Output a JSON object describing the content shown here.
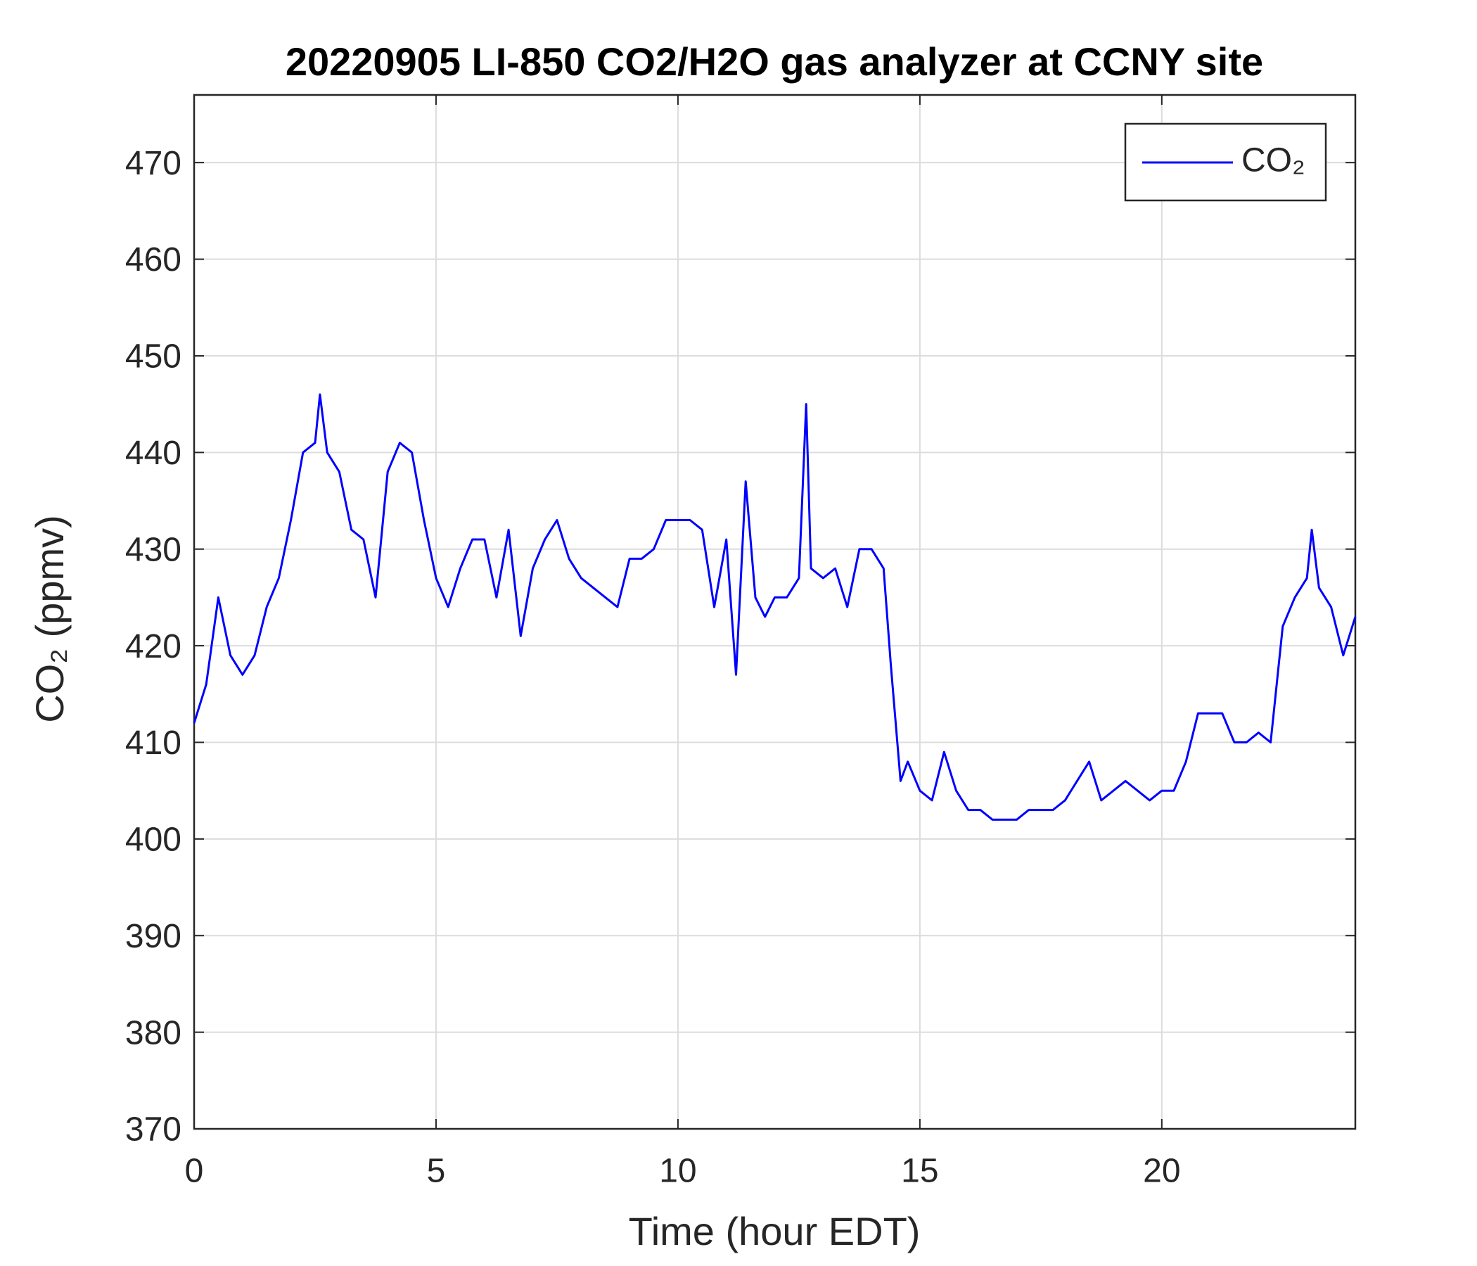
{
  "chart_data": {
    "type": "line",
    "title": "20220905 LI-850 CO2/H2O gas analyzer at CCNY site",
    "xlabel": "Time (hour EDT)",
    "ylabel": "CO₂ (ppmv)",
    "x": [
      0,
      0.25,
      0.5,
      0.75,
      1,
      1.25,
      1.5,
      1.75,
      2,
      2.25,
      2.5,
      2.6,
      2.75,
      3,
      3.25,
      3.5,
      3.75,
      4,
      4.25,
      4.5,
      4.75,
      5,
      5.25,
      5.5,
      5.75,
      6,
      6.25,
      6.5,
      6.75,
      7,
      7.25,
      7.5,
      7.75,
      8,
      8.25,
      8.5,
      8.75,
      9,
      9.25,
      9.5,
      9.75,
      10,
      10.25,
      10.5,
      10.75,
      11,
      11.2,
      11.4,
      11.6,
      11.8,
      12,
      12.25,
      12.5,
      12.65,
      12.75,
      13,
      13.25,
      13.5,
      13.75,
      14,
      14.25,
      14.4,
      14.6,
      14.75,
      15,
      15.25,
      15.5,
      15.75,
      16,
      16.25,
      16.5,
      16.75,
      17,
      17.25,
      17.5,
      17.75,
      18,
      18.25,
      18.5,
      18.75,
      19,
      19.25,
      19.5,
      19.75,
      20,
      20.25,
      20.5,
      20.75,
      21,
      21.25,
      21.5,
      21.75,
      22,
      22.25,
      22.5,
      22.75,
      23,
      23.1,
      23.25,
      23.5,
      23.75,
      24
    ],
    "series": [
      {
        "name": "CO₂",
        "color": "#0000ff",
        "values": [
          412,
          416,
          425,
          419,
          417,
          419,
          424,
          427,
          433,
          440,
          441,
          446,
          440,
          438,
          432,
          431,
          425,
          438,
          441,
          440,
          433,
          427,
          424,
          428,
          431,
          431,
          425,
          432,
          421,
          428,
          431,
          433,
          429,
          427,
          426,
          425,
          424,
          429,
          429,
          430,
          433,
          433,
          433,
          432,
          424,
          431,
          417,
          437,
          425,
          423,
          425,
          425,
          427,
          445,
          428,
          427,
          428,
          424,
          430,
          430,
          428,
          418,
          406,
          408,
          405,
          404,
          409,
          405,
          403,
          403,
          402,
          402,
          402,
          403,
          403,
          403,
          404,
          406,
          408,
          404,
          405,
          406,
          405,
          404,
          405,
          405,
          408,
          413,
          413,
          413,
          410,
          410,
          411,
          410,
          422,
          425,
          427,
          432,
          426,
          424,
          419,
          423
        ]
      }
    ],
    "xlim": [
      0,
      24
    ],
    "ylim": [
      370,
      477
    ],
    "xticks": [
      0,
      5,
      10,
      15,
      20
    ],
    "yticks": [
      370,
      380,
      390,
      400,
      410,
      420,
      430,
      440,
      450,
      460,
      470
    ],
    "grid": true,
    "legend": "upper right"
  }
}
